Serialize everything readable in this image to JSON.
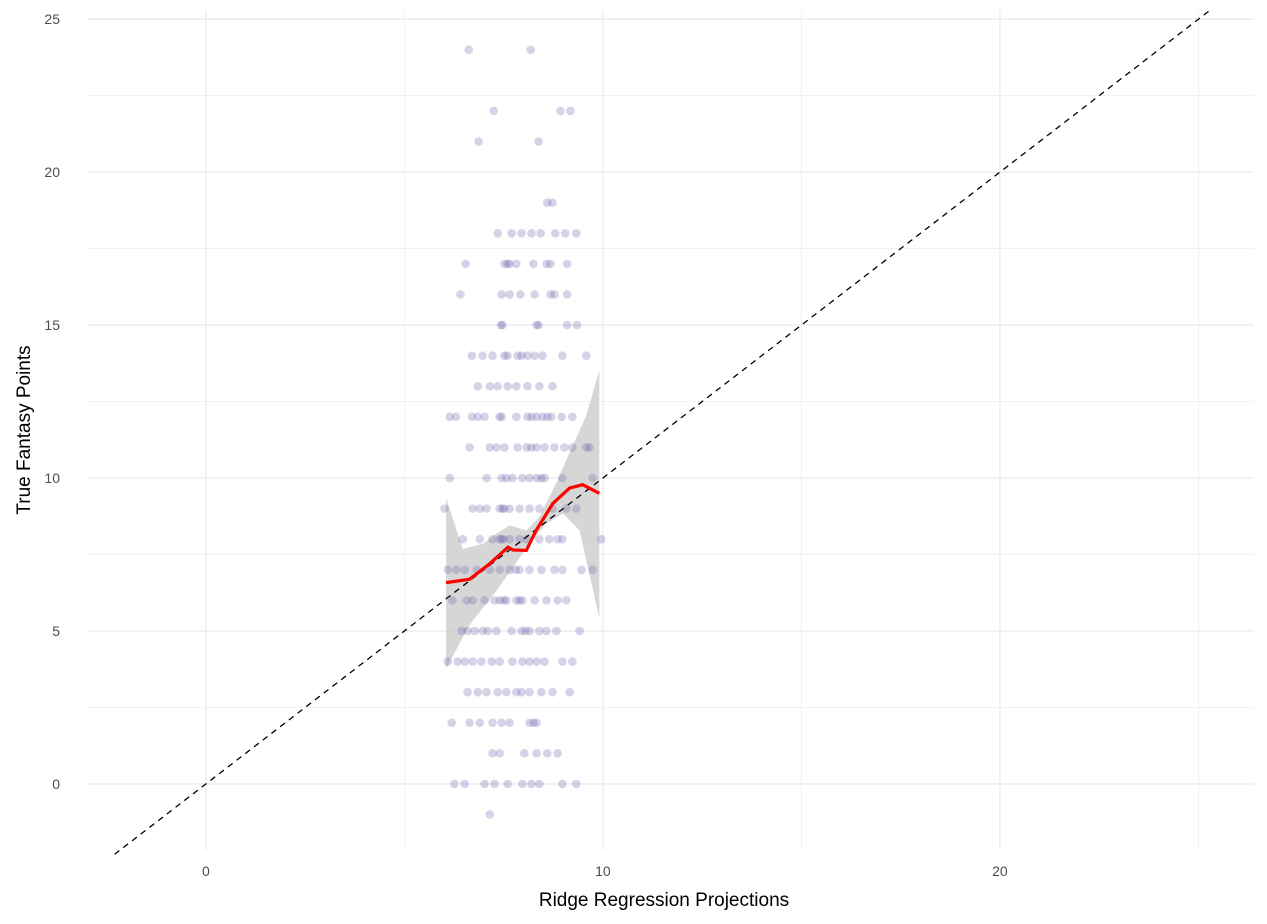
{
  "chart_data": {
    "type": "scatter",
    "title": "",
    "xlabel": "Ridge Regression Projections",
    "ylabel": "True Fantasy Points",
    "xlim": [
      -2.97,
      26.4
    ],
    "ylim": [
      -2.16,
      25.3
    ],
    "x_ticks": [
      0,
      10,
      20
    ],
    "y_ticks": [
      0,
      5,
      10,
      15,
      20,
      25
    ],
    "grid": true,
    "colors": {
      "points": "#6a5fa8",
      "smooth": "#ff0000",
      "band": "#c8c8c8",
      "reference": "#000000",
      "grid": "#ebebeb"
    },
    "rows": [
      {
        "y": 24,
        "x": [
          6.62,
          8.18
        ]
      },
      {
        "y": 22,
        "x": [
          7.25,
          8.93,
          9.18
        ]
      },
      {
        "y": 21,
        "x": [
          6.87,
          8.38
        ]
      },
      {
        "y": 19,
        "x": [
          8.6,
          8.73
        ]
      },
      {
        "y": 18,
        "x": [
          7.35,
          7.7,
          7.95,
          8.2,
          8.43,
          8.8,
          9.05,
          9.33
        ]
      },
      {
        "y": 17,
        "x": [
          6.54,
          7.52,
          7.6,
          7.65,
          7.82,
          8.25,
          8.58,
          8.68,
          9.1
        ]
      },
      {
        "y": 16,
        "x": [
          6.41,
          7.45,
          7.65,
          7.92,
          8.28,
          8.68,
          8.78,
          9.1
        ]
      },
      {
        "y": 15,
        "x": [
          7.43,
          7.47,
          8.33,
          8.38,
          9.1,
          9.35
        ]
      },
      {
        "y": 14,
        "x": [
          6.7,
          6.97,
          7.22,
          7.52,
          7.6,
          7.85,
          7.95,
          8.1,
          8.28,
          8.48,
          8.98,
          9.58
        ]
      },
      {
        "y": 13,
        "x": [
          6.85,
          7.15,
          7.35,
          7.6,
          7.82,
          8.1,
          8.4,
          8.73
        ]
      },
      {
        "y": 12,
        "x": [
          6.14,
          6.3,
          6.7,
          6.85,
          7.02,
          7.4,
          7.45,
          7.82,
          8.1,
          8.2,
          8.33,
          8.48,
          8.6,
          8.7,
          8.96,
          9.23
        ]
      },
      {
        "y": 11,
        "x": [
          6.64,
          7.15,
          7.32,
          7.52,
          7.85,
          8.08,
          8.2,
          8.33,
          8.53,
          8.78,
          9.03,
          9.23,
          9.58,
          9.66
        ]
      },
      {
        "y": 10,
        "x": [
          6.14,
          7.07,
          7.45,
          7.57,
          7.72,
          7.97,
          8.15,
          8.33,
          8.45,
          8.53,
          8.98,
          9.74
        ]
      },
      {
        "y": 9,
        "x": [
          6.01,
          6.72,
          6.9,
          7.07,
          7.4,
          7.47,
          7.52,
          7.65,
          7.9,
          8.15,
          8.4,
          8.73,
          9.08,
          9.33
        ]
      },
      {
        "y": 8,
        "x": [
          6.47,
          6.9,
          7.22,
          7.4,
          7.45,
          7.5,
          7.65,
          7.9,
          8.08,
          8.4,
          8.65,
          8.86,
          8.98,
          9.96
        ]
      },
      {
        "y": 7,
        "x": [
          6.09,
          6.31,
          6.52,
          6.82,
          7.15,
          7.4,
          7.65,
          7.8,
          7.9,
          8.15,
          8.45,
          8.78,
          8.98,
          9.46,
          9.74
        ]
      },
      {
        "y": 6,
        "x": [
          6.21,
          6.57,
          6.72,
          7.02,
          7.27,
          7.4,
          7.5,
          7.57,
          7.82,
          7.9,
          7.97,
          8.28,
          8.58,
          8.86,
          9.08
        ]
      },
      {
        "y": 5,
        "x": [
          6.44,
          6.59,
          6.77,
          6.97,
          7.1,
          7.32,
          7.7,
          7.95,
          8.05,
          8.15,
          8.4,
          8.58,
          8.83,
          9.41
        ]
      },
      {
        "y": 4,
        "x": [
          6.09,
          6.34,
          6.52,
          6.72,
          6.94,
          7.2,
          7.4,
          7.72,
          7.97,
          8.15,
          8.33,
          8.53,
          8.98,
          9.23
        ]
      },
      {
        "y": 3,
        "x": [
          6.59,
          6.85,
          7.07,
          7.35,
          7.57,
          7.82,
          7.95,
          8.15,
          8.45,
          8.73,
          9.16
        ]
      },
      {
        "y": 2,
        "x": [
          6.19,
          6.64,
          6.9,
          7.22,
          7.45,
          7.65,
          8.15,
          8.25,
          8.33
        ]
      },
      {
        "y": 1,
        "x": [
          7.22,
          7.4,
          8.02,
          8.33,
          8.6,
          8.86
        ]
      },
      {
        "y": 0,
        "x": [
          6.26,
          6.52,
          7.02,
          7.27,
          7.6,
          7.97,
          8.2,
          8.4,
          8.98,
          9.33
        ]
      },
      {
        "y": -1,
        "x": [
          7.15
        ]
      }
    ],
    "smooth": {
      "x": [
        6.05,
        6.64,
        7.14,
        7.61,
        7.73,
        8.07,
        8.32,
        8.74,
        9.16,
        9.49,
        9.91
      ],
      "y": [
        6.58,
        6.69,
        7.19,
        7.74,
        7.65,
        7.63,
        8.29,
        9.17,
        9.67,
        9.78,
        9.5
      ]
    },
    "band_upper": {
      "x": [
        6.05,
        6.47,
        6.98,
        7.31,
        7.65,
        8.07,
        8.4,
        8.82,
        9.16,
        9.58,
        9.91
      ],
      "y": [
        9.34,
        7.68,
        7.85,
        8.18,
        8.45,
        8.29,
        8.73,
        9.83,
        10.83,
        12.04,
        13.53
      ]
    },
    "band_lower": {
      "x": [
        6.05,
        6.64,
        7.31,
        8.15,
        8.57,
        8.99,
        9.41,
        9.91
      ],
      "y": [
        3.76,
        5.2,
        6.3,
        7.85,
        8.5,
        8.84,
        8.29,
        5.42
      ]
    },
    "reference_line": {
      "x": [
        -2.3,
        25.3
      ],
      "y": [
        -2.3,
        25.3
      ],
      "style": "dashed"
    }
  }
}
